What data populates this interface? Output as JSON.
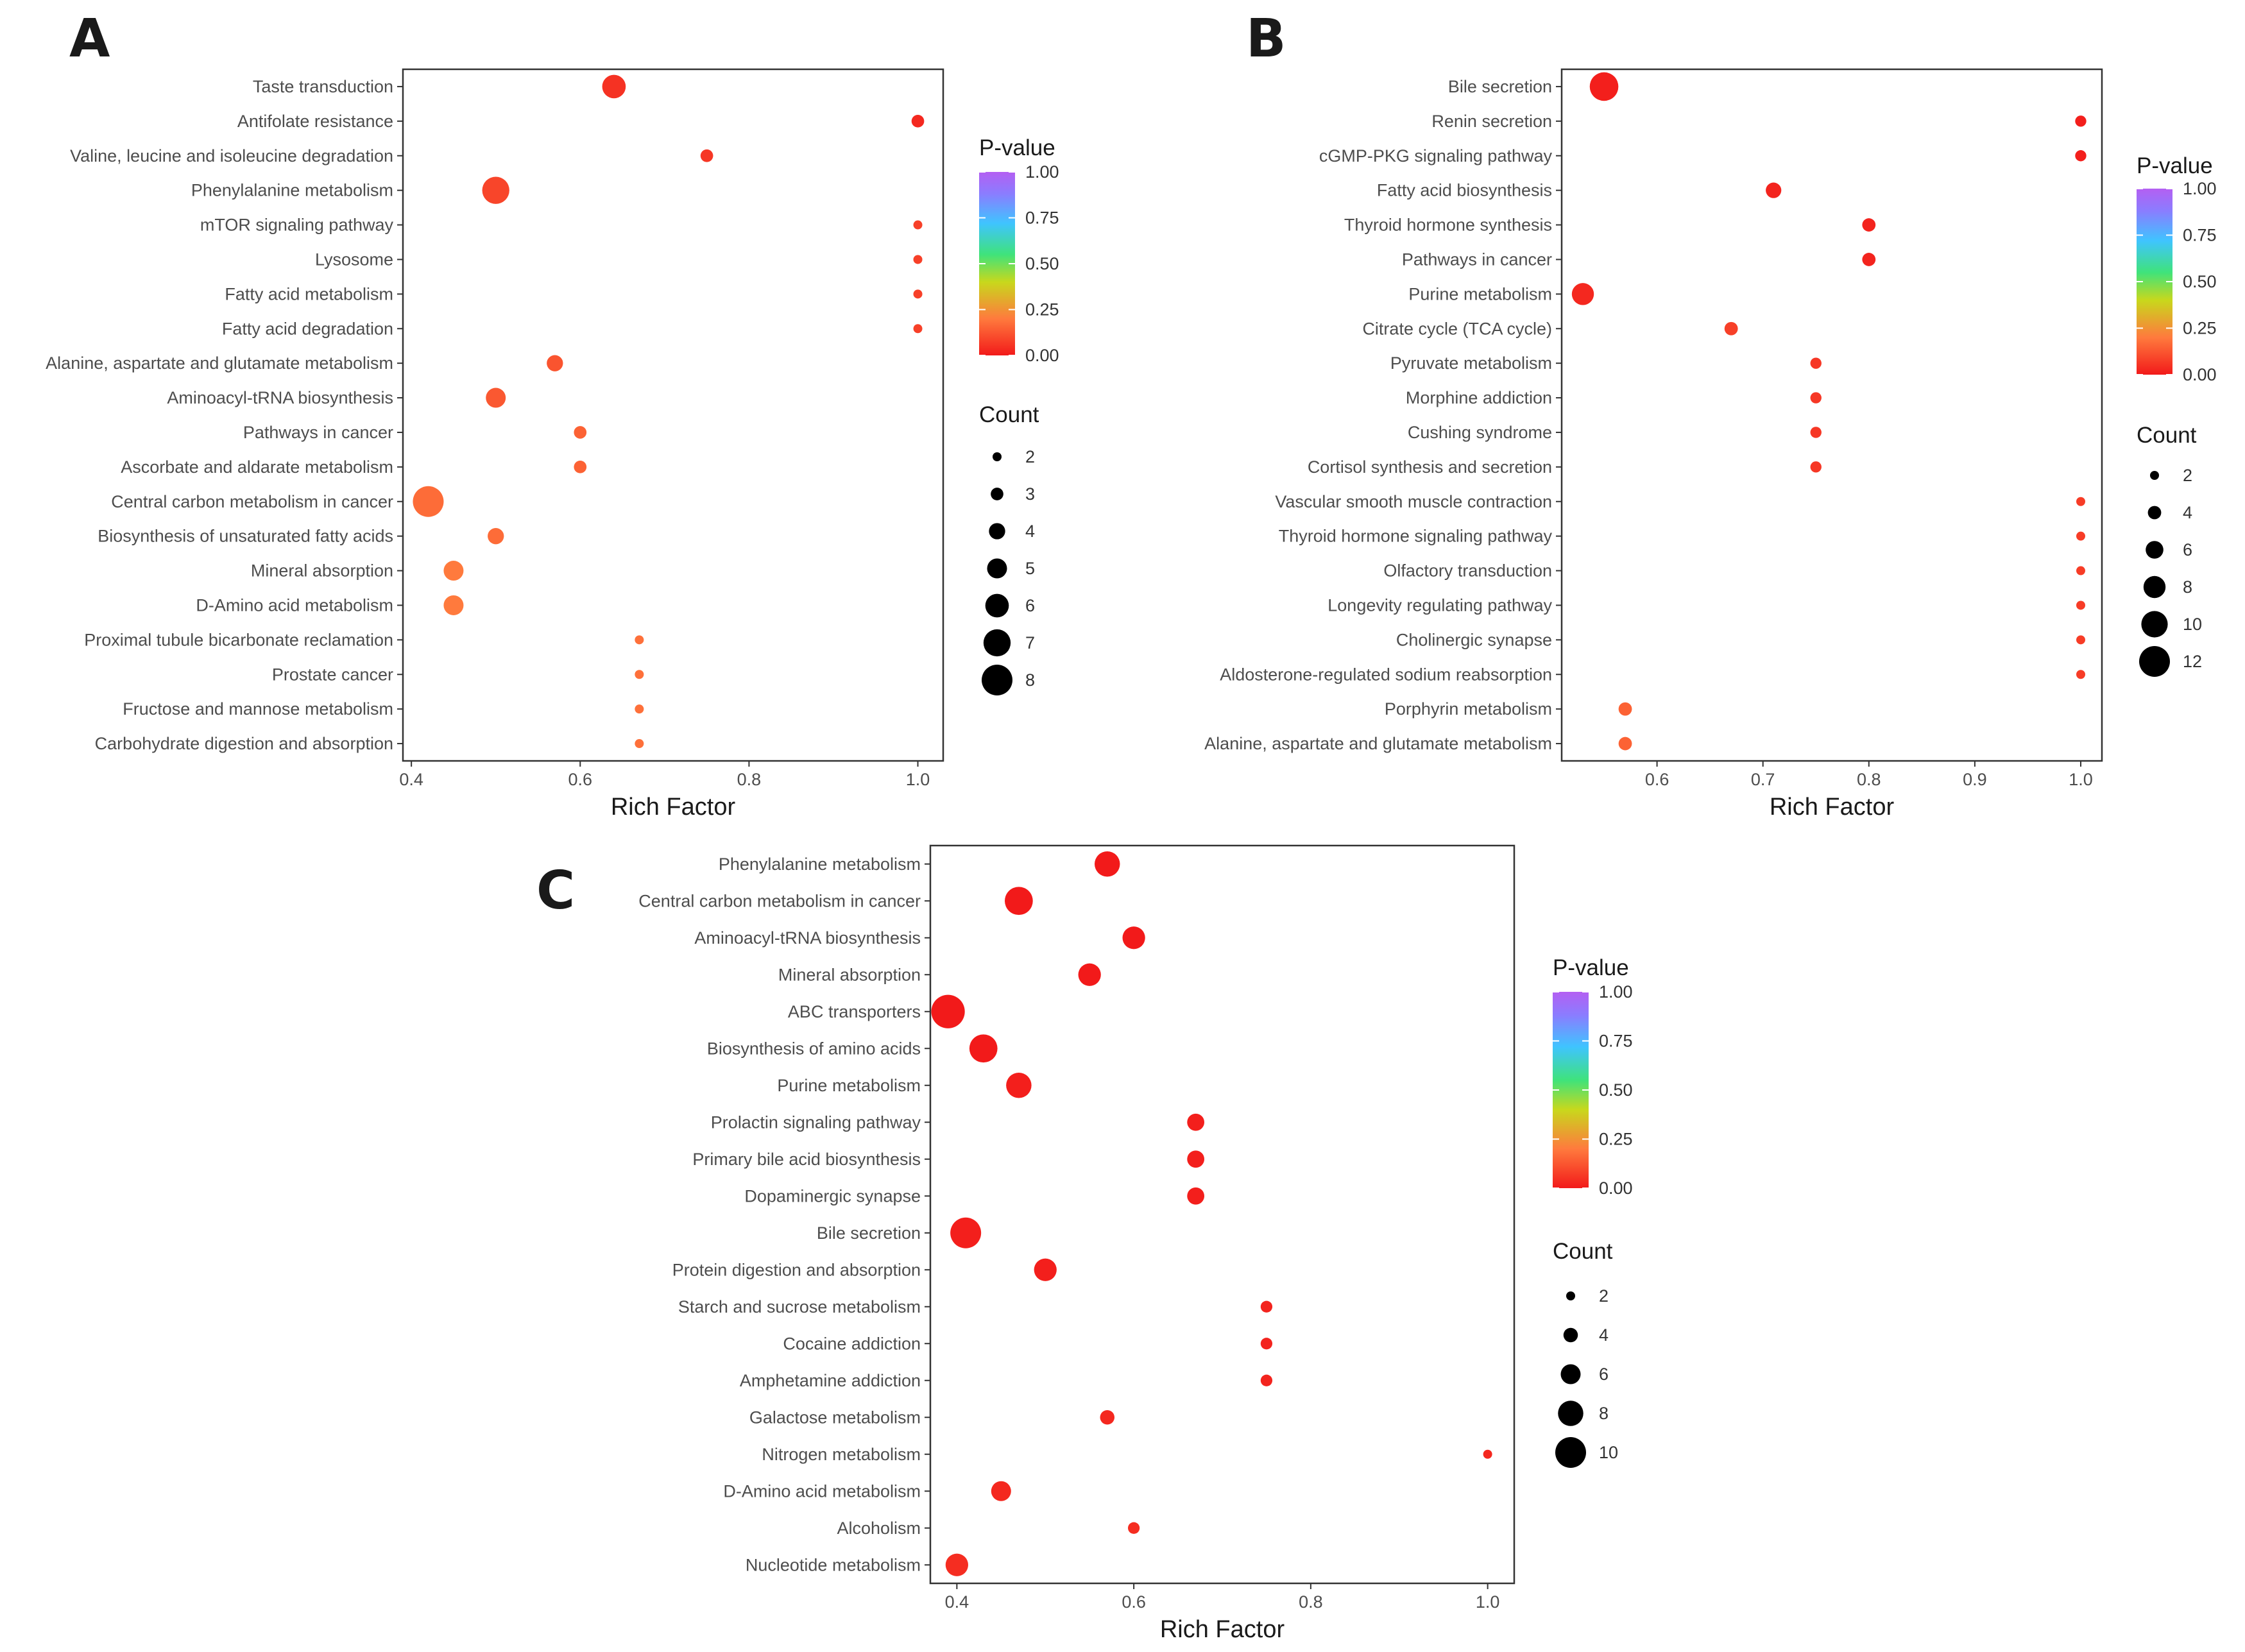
{
  "chart_data": [
    {
      "type": "scatter",
      "panel": "A",
      "xlabel": "Rich Factor",
      "xlim": [
        0.39,
        1.03
      ],
      "xticks": [
        0.4,
        0.6,
        0.8,
        1.0
      ],
      "xtick_labels": [
        "0.4",
        "0.6",
        "0.8",
        "1.0"
      ],
      "legend_pvalue_title": "P-value",
      "legend_pvalue_ticks": [
        "1.00",
        "0.75",
        "0.50",
        "0.25",
        "0.00"
      ],
      "legend_count_title": "Count",
      "legend_count_values": [
        2,
        3,
        4,
        5,
        6,
        7,
        8
      ],
      "points": [
        {
          "term": "Taste transduction",
          "rich_factor": 0.64,
          "count": 6,
          "p_value": 0.05
        },
        {
          "term": "Antifolate resistance",
          "rich_factor": 1.0,
          "count": 3,
          "p_value": 0.03
        },
        {
          "term": "Valine, leucine and isoleucine degradation",
          "rich_factor": 0.75,
          "count": 3,
          "p_value": 0.06
        },
        {
          "term": "Phenylalanine metabolism",
          "rich_factor": 0.5,
          "count": 7,
          "p_value": 0.09
        },
        {
          "term": "mTOR signaling pathway",
          "rich_factor": 1.0,
          "count": 2,
          "p_value": 0.08
        },
        {
          "term": "Lysosome",
          "rich_factor": 1.0,
          "count": 2,
          "p_value": 0.08
        },
        {
          "term": "Fatty acid metabolism",
          "rich_factor": 1.0,
          "count": 2,
          "p_value": 0.08
        },
        {
          "term": "Fatty acid degradation",
          "rich_factor": 1.0,
          "count": 2,
          "p_value": 0.08
        },
        {
          "term": "Alanine, aspartate and glutamate metabolism",
          "rich_factor": 0.57,
          "count": 4,
          "p_value": 0.12
        },
        {
          "term": "Aminoacyl-tRNA biosynthesis",
          "rich_factor": 0.5,
          "count": 5,
          "p_value": 0.13
        },
        {
          "term": "Pathways in cancer",
          "rich_factor": 0.6,
          "count": 3,
          "p_value": 0.15
        },
        {
          "term": "Ascorbate and aldarate metabolism",
          "rich_factor": 0.6,
          "count": 3,
          "p_value": 0.15
        },
        {
          "term": "Central carbon metabolism in cancer",
          "rich_factor": 0.42,
          "count": 8,
          "p_value": 0.17
        },
        {
          "term": "Biosynthesis of unsaturated fatty acids",
          "rich_factor": 0.5,
          "count": 4,
          "p_value": 0.17
        },
        {
          "term": "Mineral absorption",
          "rich_factor": 0.45,
          "count": 5,
          "p_value": 0.2
        },
        {
          "term": "D-Amino acid metabolism",
          "rich_factor": 0.45,
          "count": 5,
          "p_value": 0.2
        },
        {
          "term": "Proximal tubule bicarbonate reclamation",
          "rich_factor": 0.67,
          "count": 2,
          "p_value": 0.18
        },
        {
          "term": "Prostate cancer",
          "rich_factor": 0.67,
          "count": 2,
          "p_value": 0.18
        },
        {
          "term": "Fructose and mannose metabolism",
          "rich_factor": 0.67,
          "count": 2,
          "p_value": 0.18
        },
        {
          "term": "Carbohydrate digestion and absorption",
          "rich_factor": 0.67,
          "count": 2,
          "p_value": 0.18
        }
      ]
    },
    {
      "type": "scatter",
      "panel": "B",
      "xlabel": "Rich Factor",
      "xlim": [
        0.51,
        1.02
      ],
      "xticks": [
        0.6,
        0.7,
        0.8,
        0.9,
        1.0
      ],
      "xtick_labels": [
        "0.6",
        "0.7",
        "0.8",
        "0.9",
        "1.0"
      ],
      "legend_pvalue_title": "P-value",
      "legend_pvalue_ticks": [
        "1.00",
        "0.75",
        "0.50",
        "0.25",
        "0.00"
      ],
      "legend_count_title": "Count",
      "legend_count_values": [
        2,
        4,
        6,
        8,
        10,
        12
      ],
      "points": [
        {
          "term": "Bile secretion",
          "rich_factor": 0.55,
          "count": 11,
          "p_value": 0.01
        },
        {
          "term": "Renin secretion",
          "rich_factor": 1.0,
          "count": 3,
          "p_value": 0.01
        },
        {
          "term": "cGMP-PKG signaling pathway",
          "rich_factor": 1.0,
          "count": 3,
          "p_value": 0.01
        },
        {
          "term": "Fatty acid biosynthesis",
          "rich_factor": 0.71,
          "count": 5,
          "p_value": 0.02
        },
        {
          "term": "Thyroid hormone synthesis",
          "rich_factor": 0.8,
          "count": 4,
          "p_value": 0.02
        },
        {
          "term": "Pathways in cancer",
          "rich_factor": 0.8,
          "count": 4,
          "p_value": 0.02
        },
        {
          "term": "Purine metabolism",
          "rich_factor": 0.53,
          "count": 8,
          "p_value": 0.03
        },
        {
          "term": "Citrate cycle (TCA cycle)",
          "rich_factor": 0.67,
          "count": 4,
          "p_value": 0.08
        },
        {
          "term": "Pyruvate metabolism",
          "rich_factor": 0.75,
          "count": 3,
          "p_value": 0.06
        },
        {
          "term": "Morphine addiction",
          "rich_factor": 0.75,
          "count": 3,
          "p_value": 0.06
        },
        {
          "term": "Cushing syndrome",
          "rich_factor": 0.75,
          "count": 3,
          "p_value": 0.06
        },
        {
          "term": "Cortisol synthesis and secretion",
          "rich_factor": 0.75,
          "count": 3,
          "p_value": 0.06
        },
        {
          "term": "Vascular smooth muscle contraction",
          "rich_factor": 1.0,
          "count": 2,
          "p_value": 0.07
        },
        {
          "term": "Thyroid hormone signaling pathway",
          "rich_factor": 1.0,
          "count": 2,
          "p_value": 0.07
        },
        {
          "term": "Olfactory transduction",
          "rich_factor": 1.0,
          "count": 2,
          "p_value": 0.07
        },
        {
          "term": "Longevity regulating pathway",
          "rich_factor": 1.0,
          "count": 2,
          "p_value": 0.07
        },
        {
          "term": "Cholinergic synapse",
          "rich_factor": 1.0,
          "count": 2,
          "p_value": 0.07
        },
        {
          "term": "Aldosterone-regulated sodium reabsorption",
          "rich_factor": 1.0,
          "count": 2,
          "p_value": 0.07
        },
        {
          "term": "Porphyrin metabolism",
          "rich_factor": 0.57,
          "count": 4,
          "p_value": 0.15
        },
        {
          "term": "Alanine, aspartate and glutamate metabolism",
          "rich_factor": 0.57,
          "count": 4,
          "p_value": 0.15
        }
      ]
    },
    {
      "type": "scatter",
      "panel": "C",
      "xlabel": "Rich Factor",
      "xlim": [
        0.37,
        1.03
      ],
      "xticks": [
        0.4,
        0.6,
        0.8,
        1.0
      ],
      "xtick_labels": [
        "0.4",
        "0.6",
        "0.8",
        "1.0"
      ],
      "legend_pvalue_title": "P-value",
      "legend_pvalue_ticks": [
        "1.00",
        "0.75",
        "0.50",
        "0.25",
        "0.00"
      ],
      "legend_count_title": "Count",
      "legend_count_values": [
        2,
        4,
        6,
        8,
        10
      ],
      "points": [
        {
          "term": "Phenylalanine metabolism",
          "rich_factor": 0.57,
          "count": 8,
          "p_value": 0.0
        },
        {
          "term": "Central carbon metabolism in cancer",
          "rich_factor": 0.47,
          "count": 9,
          "p_value": 0.0
        },
        {
          "term": "Aminoacyl-tRNA biosynthesis",
          "rich_factor": 0.6,
          "count": 7,
          "p_value": 0.0
        },
        {
          "term": "Mineral absorption",
          "rich_factor": 0.55,
          "count": 7,
          "p_value": 0.0
        },
        {
          "term": "ABC transporters",
          "rich_factor": 0.39,
          "count": 11,
          "p_value": 0.0
        },
        {
          "term": "Biosynthesis of amino acids",
          "rich_factor": 0.43,
          "count": 9,
          "p_value": 0.0
        },
        {
          "term": "Purine metabolism",
          "rich_factor": 0.47,
          "count": 8,
          "p_value": 0.01
        },
        {
          "term": "Prolactin signaling pathway",
          "rich_factor": 0.67,
          "count": 5,
          "p_value": 0.01
        },
        {
          "term": "Primary bile acid biosynthesis",
          "rich_factor": 0.67,
          "count": 5,
          "p_value": 0.01
        },
        {
          "term": "Dopaminergic synapse",
          "rich_factor": 0.67,
          "count": 5,
          "p_value": 0.01
        },
        {
          "term": "Bile secretion",
          "rich_factor": 0.41,
          "count": 10,
          "p_value": 0.01
        },
        {
          "term": "Protein digestion and absorption",
          "rich_factor": 0.5,
          "count": 7,
          "p_value": 0.01
        },
        {
          "term": "Starch and sucrose metabolism",
          "rich_factor": 0.75,
          "count": 3,
          "p_value": 0.02
        },
        {
          "term": "Cocaine addiction",
          "rich_factor": 0.75,
          "count": 3,
          "p_value": 0.02
        },
        {
          "term": "Amphetamine addiction",
          "rich_factor": 0.75,
          "count": 3,
          "p_value": 0.02
        },
        {
          "term": "Galactose metabolism",
          "rich_factor": 0.57,
          "count": 4,
          "p_value": 0.03
        },
        {
          "term": "Nitrogen metabolism",
          "rich_factor": 1.0,
          "count": 2,
          "p_value": 0.03
        },
        {
          "term": "D-Amino acid metabolism",
          "rich_factor": 0.45,
          "count": 6,
          "p_value": 0.03
        },
        {
          "term": "Alcoholism",
          "rich_factor": 0.6,
          "count": 3,
          "p_value": 0.04
        },
        {
          "term": "Nucleotide metabolism",
          "rich_factor": 0.4,
          "count": 7,
          "p_value": 0.04
        }
      ]
    }
  ],
  "colors": {
    "gradient": [
      "#f21a1a",
      "#ff7a3d",
      "#c8d81c",
      "#3fe37b",
      "#3fc4ff",
      "#8a7dff",
      "#b45ff2"
    ],
    "dot_low": "#f21a1a",
    "dot_high": "#ff7a3d"
  }
}
